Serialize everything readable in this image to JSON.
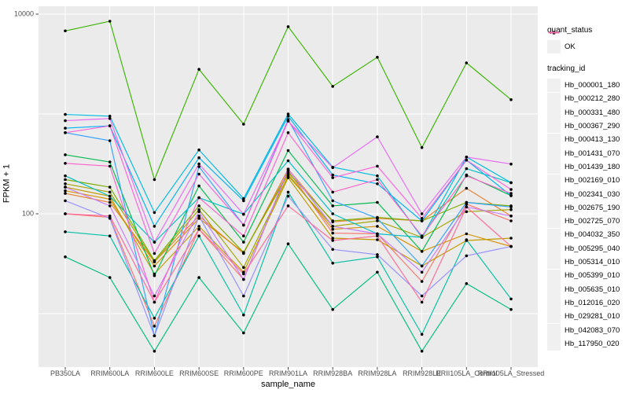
{
  "figure": {
    "bg": "#FFFFFF",
    "panel_bg": "#EBEBEB",
    "grid_color": "#FFFFFF",
    "point_color": "#000000",
    "tick_color": "#333333"
  },
  "axes": {
    "x_title": "sample_name",
    "y_title": "FPKM + 1",
    "y_ticks": [
      {
        "label": "10000",
        "value": 10000
      },
      {
        "label": "100",
        "value": 100
      }
    ]
  },
  "legend": {
    "quant_status_title": "quant_status",
    "quant_status_items": [
      {
        "label": "OK"
      }
    ],
    "tracking_title": "tracking_id"
  },
  "chart_data": {
    "type": "line",
    "title": "",
    "xlabel": "sample_name",
    "ylabel": "FPKM + 1",
    "y_scale": "log10",
    "ylim": [
      3,
      12000
    ],
    "y_major_breaks": [
      100,
      10000
    ],
    "y_minor_breaks": [
      10,
      1000
    ],
    "grid": true,
    "legend_position": "right",
    "point_shape": "filled-circle",
    "categories": [
      "PB350LA",
      "RRIM600LA",
      "RRIM600LE",
      "RRIM600SE",
      "RRIM600PE",
      "RRIM901LA",
      "RRIM928BA",
      "RRIM928LA",
      "RRIM928LE",
      "RRII105LA_Control",
      "RRII105LA_Stressed"
    ],
    "quant_status_all_points": "OK",
    "series": [
      {
        "name": "Hb_000001_180",
        "color": "#F8766D",
        "values": [
          100,
          92,
          7.5,
          70,
          22,
          270,
          64,
          63,
          21,
          125,
          85
        ]
      },
      {
        "name": "Hb_000212_280",
        "color": "#EA8331",
        "values": [
          160,
          130,
          33,
          95,
          40,
          280,
          83,
          90,
          85,
          180,
          95
        ]
      },
      {
        "name": "Hb_000331_480",
        "color": "#D89000",
        "values": [
          170,
          140,
          30,
          90,
          41,
          250,
          70,
          75,
          42,
          63,
          47
        ]
      },
      {
        "name": "Hb_000367_290",
        "color": "#C09B00",
        "values": [
          185,
          150,
          25,
          75,
          26,
          230,
          57,
          55,
          30,
          54,
          57
        ]
      },
      {
        "name": "Hb_000413_130",
        "color": "#A3A500",
        "values": [
          200,
          165,
          33,
          110,
          29,
          240,
          75,
          85,
          58,
          105,
          110
        ]
      },
      {
        "name": "Hb_001431_070",
        "color": "#7CAE00",
        "values": [
          220,
          185,
          34,
          120,
          41,
          260,
          85,
          92,
          85,
          130,
          120
        ]
      },
      {
        "name": "Hb_001439_180",
        "color": "#39B600",
        "values": [
          6800,
          8500,
          220,
          2800,
          790,
          7500,
          1890,
          3700,
          460,
          3250,
          1390
        ]
      },
      {
        "name": "Hb_002169_010",
        "color": "#00BB4E",
        "values": [
          390,
          330,
          24,
          190,
          52,
          430,
          120,
          130,
          42,
          245,
          152
        ]
      },
      {
        "name": "Hb_002341_030",
        "color": "#00BF7D",
        "values": [
          37,
          23,
          4.2,
          23,
          6.4,
          50,
          11,
          26,
          4.2,
          20,
          11
        ]
      },
      {
        "name": "Hb_002675_190",
        "color": "#00C1A3",
        "values": [
          66,
          60,
          9,
          60,
          9.7,
          165,
          32,
          37,
          6.2,
          55,
          14
        ]
      },
      {
        "name": "Hb_002725_070",
        "color": "#00BFC4",
        "values": [
          240,
          150,
          52,
          145,
          99,
          340,
          100,
          63,
          58,
          283,
          205
        ]
      },
      {
        "name": "Hb_004032_350",
        "color": "#00BAE0",
        "values": [
          990,
          950,
          103,
          437,
          142,
          1000,
          293,
          240,
          58,
          370,
          205
        ]
      },
      {
        "name": "Hb_005295_040",
        "color": "#00B0F6",
        "values": [
          720,
          760,
          75,
          364,
          135,
          950,
          245,
          200,
          85,
          345,
          152
        ]
      },
      {
        "name": "Hb_005314_010",
        "color": "#35A2FF",
        "values": [
          650,
          540,
          6,
          297,
          77,
          880,
          135,
          90,
          30,
          130,
          117
        ]
      },
      {
        "name": "Hb_005399_010",
        "color": "#9590FF",
        "values": [
          135,
          90,
          6,
          95,
          15,
          150,
          44,
          39,
          15,
          38,
          47
        ]
      },
      {
        "name": "Hb_005635_010",
        "color": "#C77CFF",
        "values": [
          185,
          120,
          15,
          105,
          22,
          280,
          75,
          63,
          26,
          117,
          95
        ]
      },
      {
        "name": "Hb_012016_020",
        "color": "#E76BF3",
        "values": [
          855,
          900,
          52,
          316,
          99,
          850,
          290,
          590,
          100,
          370,
          315
        ]
      },
      {
        "name": "Hb_029281_010",
        "color": "#FA62DB",
        "values": [
          650,
          760,
          40,
          250,
          77,
          850,
          230,
          300,
          90,
          345,
          175
        ]
      },
      {
        "name": "Hb_042083_070",
        "color": "#FF61C9",
        "values": [
          320,
          300,
          13,
          145,
          60,
          650,
          165,
          220,
          60,
          240,
          160
        ]
      },
      {
        "name": "Hb_117950_020",
        "color": "#FF6A98",
        "values": [
          100,
          95,
          13,
          70,
          25,
          120,
          54,
          60,
          13,
          117,
          47
        ]
      }
    ]
  }
}
